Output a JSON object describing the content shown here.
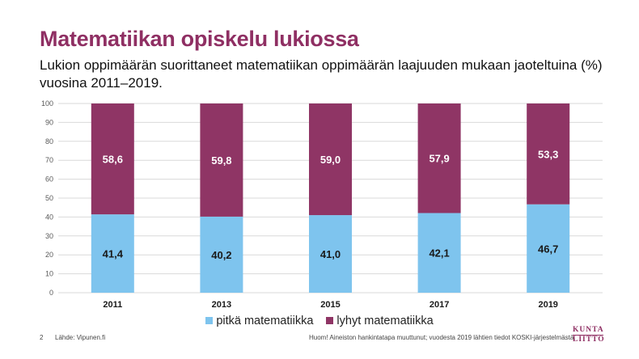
{
  "header": {
    "title": "Matematiikan opiskelu lukiossa",
    "subtitle": "Lukion oppimäärän suorittaneet matematiikan oppimäärän laajuuden mukaan jaoteltuina (%) vuosina 2011–2019."
  },
  "chart_data": {
    "type": "bar",
    "stacked": true,
    "categories": [
      "2011",
      "2013",
      "2015",
      "2017",
      "2019"
    ],
    "series": [
      {
        "name": "pitkä matematiikka",
        "values": [
          41.4,
          40.2,
          41.0,
          42.1,
          46.7
        ],
        "labels": [
          "41,4",
          "40,2",
          "41,0",
          "42,1",
          "46,7"
        ],
        "color": "#7ec4ee"
      },
      {
        "name": "lyhyt matematiikka",
        "values": [
          58.6,
          59.8,
          59.0,
          57.9,
          53.3
        ],
        "labels": [
          "58,6",
          "59,8",
          "59,0",
          "57,9",
          "53,3"
        ],
        "color": "#8f3565"
      }
    ],
    "ylim": [
      0,
      100
    ],
    "yticks": [
      0,
      10,
      20,
      30,
      40,
      50,
      60,
      70,
      80,
      90,
      100
    ],
    "grid": true,
    "legend_position": "bottom",
    "title": "",
    "xlabel": "",
    "ylabel": ""
  },
  "footer": {
    "page_number": "2",
    "source": "Lähde: Vipunen.fi",
    "note": "Huom! Aineiston hankintatapa muuttunut; vuodesta 2019 lähtien tiedot KOSKI-järjestelmästä."
  },
  "logo": {
    "line1": "KUNTA",
    "line2": "LIITTO"
  },
  "colors": {
    "title": "#8f2f63",
    "grid": "#d9d9d9",
    "axis_text": "#595959"
  }
}
